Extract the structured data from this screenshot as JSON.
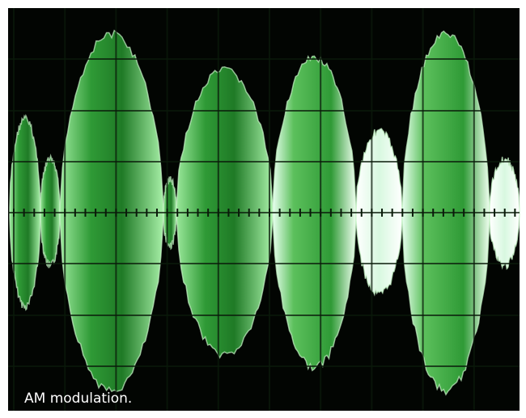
{
  "caption": "AM modulation."
}
